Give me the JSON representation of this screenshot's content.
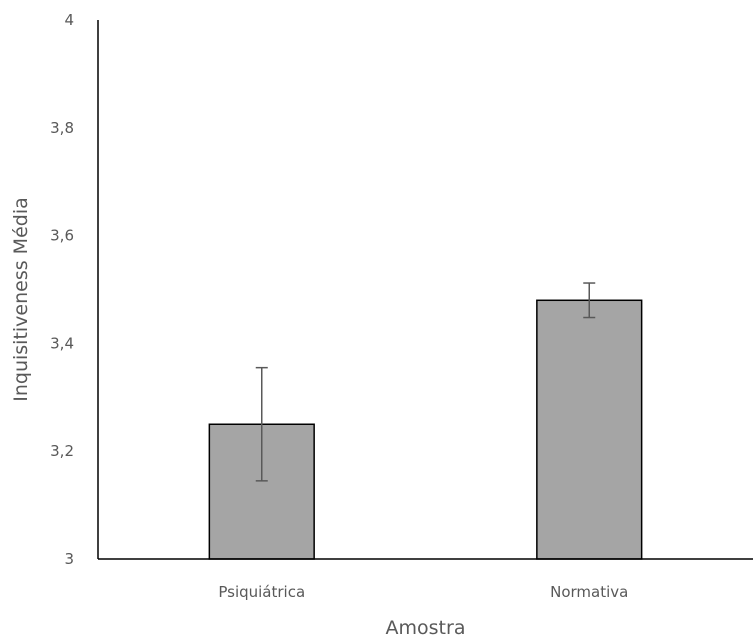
{
  "chart_data": {
    "type": "bar",
    "title": "",
    "xlabel": "Amostra",
    "ylabel": "Inquisitiveness Média",
    "categories": [
      "Psiquiátrica",
      "Normativa"
    ],
    "series": [
      {
        "values": [
          3.25,
          3.48
        ],
        "error_low": [
          3.145,
          3.448
        ],
        "error_high": [
          3.355,
          3.512
        ],
        "color": "#a5a5a5"
      }
    ],
    "ylim": [
      3,
      4
    ],
    "yticks": [
      3,
      3.2,
      3.4,
      3.6,
      3.8,
      4
    ],
    "ytick_labels": [
      "3",
      "3,2",
      "3,4",
      "3,6",
      "3,8",
      "4"
    ],
    "grid": false,
    "legend": "none"
  }
}
